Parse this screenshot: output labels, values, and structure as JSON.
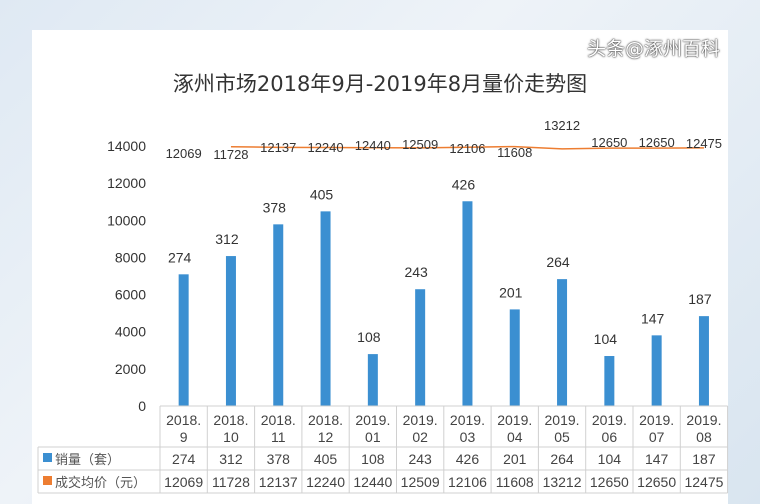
{
  "chart_data": {
    "type": "bar+line",
    "title": "涿州市场2018年9月-2019年8月量价走势图",
    "categories": [
      "2018.\n9",
      "2018.\n10",
      "2018.\n11",
      "2018.\n12",
      "2019.\n01",
      "2019.\n02",
      "2019.\n03",
      "2019.\n04",
      "2019.\n05",
      "2019.\n06",
      "2019.\n07",
      "2019.\n08"
    ],
    "yticks": [
      0,
      2000,
      4000,
      6000,
      8000,
      10000,
      12000,
      14000
    ],
    "ylim": [
      0,
      14000
    ],
    "grid": false,
    "series": [
      {
        "name": "销量（套）",
        "type": "bar",
        "color": "#3b8fd1",
        "values": [
          274,
          312,
          378,
          405,
          108,
          243,
          426,
          201,
          264,
          104,
          147,
          187
        ]
      },
      {
        "name": "成交均价（元）",
        "type": "line",
        "color": "#ed7d31",
        "values": [
          12069,
          11728,
          12137,
          12240,
          12440,
          12509,
          12106,
          11608,
          13212,
          12650,
          12650,
          12475
        ]
      }
    ],
    "legend": "data-table"
  },
  "watermark": "头条@涿州百科"
}
